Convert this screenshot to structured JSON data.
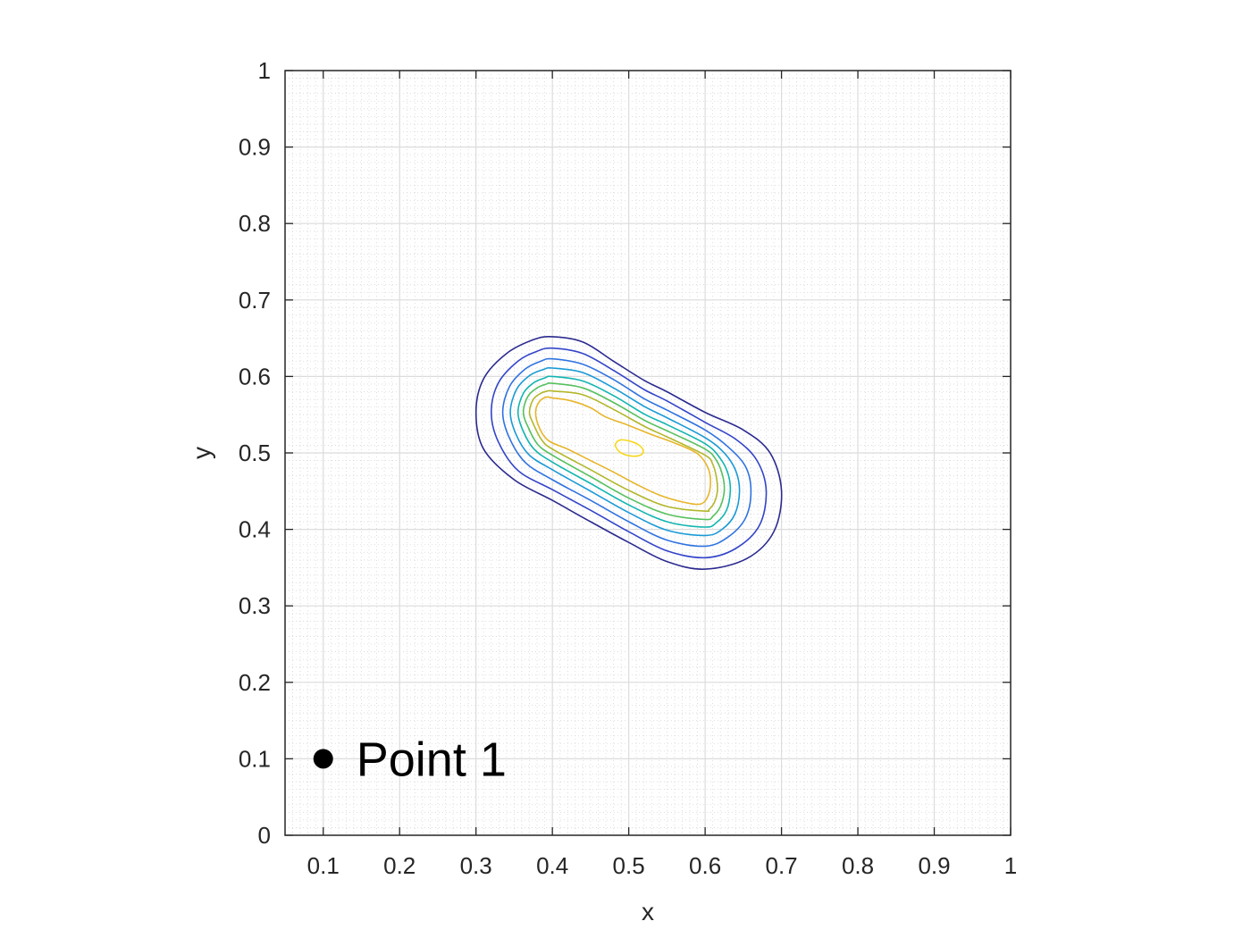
{
  "chart_data": {
    "type": "contour",
    "title": "",
    "xlabel": "x",
    "ylabel": "y",
    "xlim": [
      0.05,
      1.0
    ],
    "ylim": [
      0,
      1.0
    ],
    "xticks": [
      "0.1",
      "0.2",
      "0.3",
      "0.4",
      "0.5",
      "0.6",
      "0.7",
      "0.8",
      "0.9",
      "1"
    ],
    "yticks": [
      "0",
      "0.1",
      "0.2",
      "0.3",
      "0.4",
      "0.5",
      "0.6",
      "0.7",
      "0.8",
      "0.9",
      "1"
    ],
    "grid": true,
    "minor_grid": true,
    "contours": [
      {
        "level": 1,
        "color": "#2b2a8f",
        "points": [
          [
            0.3,
            0.553
          ],
          [
            0.31,
            0.597
          ],
          [
            0.34,
            0.63
          ],
          [
            0.375,
            0.648
          ],
          [
            0.4,
            0.652
          ],
          [
            0.44,
            0.645
          ],
          [
            0.48,
            0.62
          ],
          [
            0.52,
            0.595
          ],
          [
            0.55,
            0.58
          ],
          [
            0.6,
            0.553
          ],
          [
            0.65,
            0.53
          ],
          [
            0.685,
            0.5
          ],
          [
            0.7,
            0.45
          ],
          [
            0.69,
            0.397
          ],
          [
            0.655,
            0.362
          ],
          [
            0.6,
            0.348
          ],
          [
            0.55,
            0.358
          ],
          [
            0.5,
            0.383
          ],
          [
            0.45,
            0.41
          ],
          [
            0.4,
            0.438
          ],
          [
            0.35,
            0.465
          ],
          [
            0.31,
            0.505
          ]
        ]
      },
      {
        "level": 2,
        "color": "#3344c9",
        "points": [
          [
            0.32,
            0.553
          ],
          [
            0.329,
            0.591
          ],
          [
            0.355,
            0.62
          ],
          [
            0.38,
            0.633
          ],
          [
            0.4,
            0.637
          ],
          [
            0.44,
            0.63
          ],
          [
            0.48,
            0.608
          ],
          [
            0.52,
            0.583
          ],
          [
            0.55,
            0.568
          ],
          [
            0.6,
            0.54
          ],
          [
            0.64,
            0.518
          ],
          [
            0.668,
            0.49
          ],
          [
            0.68,
            0.45
          ],
          [
            0.671,
            0.405
          ],
          [
            0.64,
            0.375
          ],
          [
            0.6,
            0.363
          ],
          [
            0.55,
            0.372
          ],
          [
            0.5,
            0.397
          ],
          [
            0.45,
            0.425
          ],
          [
            0.4,
            0.452
          ],
          [
            0.355,
            0.477
          ],
          [
            0.329,
            0.515
          ]
        ]
      },
      {
        "level": 3,
        "color": "#2f73e0",
        "points": [
          [
            0.335,
            0.553
          ],
          [
            0.344,
            0.587
          ],
          [
            0.365,
            0.61
          ],
          [
            0.385,
            0.62
          ],
          [
            0.4,
            0.623
          ],
          [
            0.44,
            0.616
          ],
          [
            0.48,
            0.596
          ],
          [
            0.52,
            0.571
          ],
          [
            0.55,
            0.556
          ],
          [
            0.6,
            0.53
          ],
          [
            0.63,
            0.508
          ],
          [
            0.653,
            0.482
          ],
          [
            0.66,
            0.45
          ],
          [
            0.653,
            0.415
          ],
          [
            0.63,
            0.39
          ],
          [
            0.6,
            0.378
          ],
          [
            0.55,
            0.386
          ],
          [
            0.5,
            0.41
          ],
          [
            0.45,
            0.438
          ],
          [
            0.4,
            0.465
          ],
          [
            0.365,
            0.487
          ],
          [
            0.344,
            0.519
          ]
        ]
      },
      {
        "level": 4,
        "color": "#1a9ad6",
        "points": [
          [
            0.345,
            0.553
          ],
          [
            0.353,
            0.583
          ],
          [
            0.37,
            0.601
          ],
          [
            0.388,
            0.609
          ],
          [
            0.4,
            0.611
          ],
          [
            0.44,
            0.605
          ],
          [
            0.48,
            0.585
          ],
          [
            0.52,
            0.561
          ],
          [
            0.55,
            0.546
          ],
          [
            0.6,
            0.52
          ],
          [
            0.625,
            0.5
          ],
          [
            0.64,
            0.477
          ],
          [
            0.645,
            0.45
          ],
          [
            0.639,
            0.42
          ],
          [
            0.622,
            0.4
          ],
          [
            0.6,
            0.392
          ],
          [
            0.55,
            0.399
          ],
          [
            0.5,
            0.422
          ],
          [
            0.45,
            0.45
          ],
          [
            0.4,
            0.478
          ],
          [
            0.37,
            0.497
          ],
          [
            0.353,
            0.523
          ]
        ]
      },
      {
        "level": 5,
        "color": "#13b5b0",
        "points": [
          [
            0.355,
            0.553
          ],
          [
            0.362,
            0.578
          ],
          [
            0.376,
            0.592
          ],
          [
            0.39,
            0.598
          ],
          [
            0.4,
            0.6
          ],
          [
            0.44,
            0.594
          ],
          [
            0.48,
            0.575
          ],
          [
            0.52,
            0.551
          ],
          [
            0.55,
            0.537
          ],
          [
            0.6,
            0.512
          ],
          [
            0.619,
            0.494
          ],
          [
            0.63,
            0.473
          ],
          [
            0.633,
            0.45
          ],
          [
            0.628,
            0.425
          ],
          [
            0.615,
            0.409
          ],
          [
            0.6,
            0.403
          ],
          [
            0.55,
            0.41
          ],
          [
            0.5,
            0.432
          ],
          [
            0.45,
            0.46
          ],
          [
            0.4,
            0.488
          ],
          [
            0.376,
            0.505
          ],
          [
            0.362,
            0.528
          ]
        ]
      },
      {
        "level": 6,
        "color": "#56c05e",
        "points": [
          [
            0.362,
            0.553
          ],
          [
            0.368,
            0.574
          ],
          [
            0.38,
            0.585
          ],
          [
            0.392,
            0.59
          ],
          [
            0.4,
            0.591
          ],
          [
            0.44,
            0.585
          ],
          [
            0.48,
            0.566
          ],
          [
            0.52,
            0.543
          ],
          [
            0.55,
            0.529
          ],
          [
            0.6,
            0.505
          ],
          [
            0.615,
            0.49
          ],
          [
            0.623,
            0.47
          ],
          [
            0.625,
            0.45
          ],
          [
            0.62,
            0.43
          ],
          [
            0.61,
            0.417
          ],
          [
            0.6,
            0.413
          ],
          [
            0.55,
            0.42
          ],
          [
            0.5,
            0.441
          ],
          [
            0.45,
            0.469
          ],
          [
            0.4,
            0.497
          ],
          [
            0.381,
            0.511
          ],
          [
            0.369,
            0.532
          ]
        ]
      },
      {
        "level": 7,
        "color": "#b2b72b",
        "points": [
          [
            0.37,
            0.553
          ],
          [
            0.375,
            0.57
          ],
          [
            0.385,
            0.578
          ],
          [
            0.394,
            0.581
          ],
          [
            0.4,
            0.581
          ],
          [
            0.44,
            0.576
          ],
          [
            0.48,
            0.557
          ],
          [
            0.52,
            0.535
          ],
          [
            0.55,
            0.521
          ],
          [
            0.6,
            0.497
          ],
          [
            0.61,
            0.485
          ],
          [
            0.615,
            0.467
          ],
          [
            0.616,
            0.45
          ],
          [
            0.612,
            0.435
          ],
          [
            0.605,
            0.426
          ],
          [
            0.6,
            0.424
          ],
          [
            0.55,
            0.43
          ],
          [
            0.5,
            0.451
          ],
          [
            0.45,
            0.478
          ],
          [
            0.4,
            0.505
          ],
          [
            0.386,
            0.517
          ],
          [
            0.376,
            0.536
          ]
        ]
      },
      {
        "level": 8,
        "color": "#e7b52a",
        "points": [
          [
            0.378,
            0.553
          ],
          [
            0.383,
            0.567
          ],
          [
            0.392,
            0.573
          ],
          [
            0.4,
            0.572
          ],
          [
            0.425,
            0.568
          ],
          [
            0.45,
            0.559
          ],
          [
            0.47,
            0.547
          ],
          [
            0.5,
            0.536
          ],
          [
            0.53,
            0.524
          ],
          [
            0.56,
            0.513
          ],
          [
            0.59,
            0.499
          ],
          [
            0.604,
            0.48
          ],
          [
            0.607,
            0.46
          ],
          [
            0.603,
            0.442
          ],
          [
            0.593,
            0.433
          ],
          [
            0.57,
            0.436
          ],
          [
            0.54,
            0.445
          ],
          [
            0.51,
            0.459
          ],
          [
            0.48,
            0.475
          ],
          [
            0.45,
            0.49
          ],
          [
            0.42,
            0.505
          ],
          [
            0.395,
            0.516
          ],
          [
            0.383,
            0.533
          ]
        ]
      },
      {
        "level": 9,
        "color": "#f7d81c",
        "points": [
          [
            0.483,
            0.508
          ],
          [
            0.49,
            0.5
          ],
          [
            0.503,
            0.496
          ],
          [
            0.515,
            0.497
          ],
          [
            0.519,
            0.502
          ],
          [
            0.515,
            0.509
          ],
          [
            0.503,
            0.515
          ],
          [
            0.49,
            0.517
          ],
          [
            0.484,
            0.514
          ]
        ]
      }
    ],
    "markers": [
      {
        "x": 0.1,
        "y": 0.1,
        "label": "Point 1",
        "color": "#000000"
      }
    ]
  }
}
